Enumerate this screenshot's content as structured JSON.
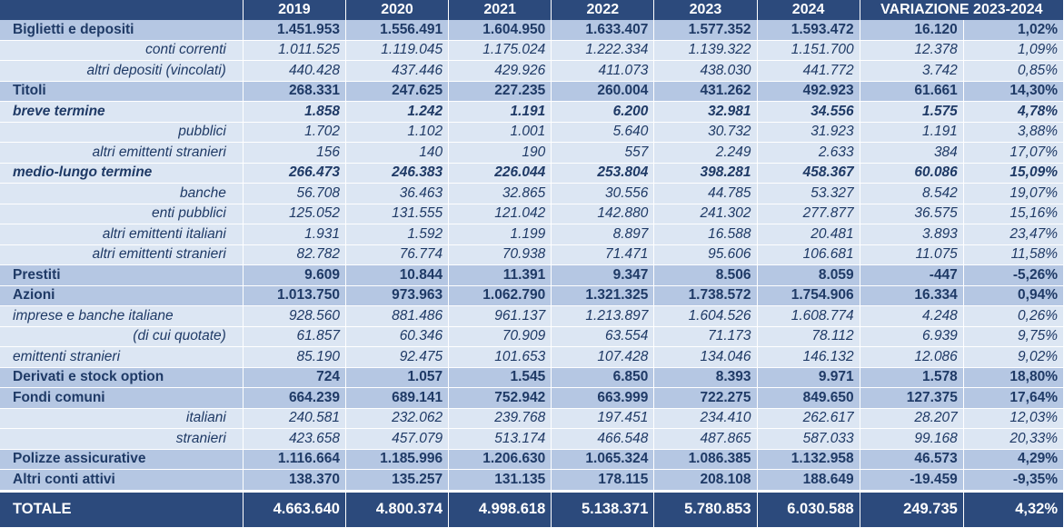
{
  "header": {
    "label": "",
    "years": [
      "2019",
      "2020",
      "2021",
      "2022",
      "2023",
      "2024"
    ],
    "variation": "VARIAZIONE 2023-2024"
  },
  "rows": [
    {
      "label": "Biglietti e depositi",
      "style": "lvl0",
      "align": "lbl-0",
      "values": [
        "1.451.953",
        "1.556.491",
        "1.604.950",
        "1.633.407",
        "1.577.352",
        "1.593.472",
        "16.120",
        "1,02%"
      ]
    },
    {
      "label": "conti correnti",
      "style": "sub",
      "align": "lbl-r",
      "values": [
        "1.011.525",
        "1.119.045",
        "1.175.024",
        "1.222.334",
        "1.139.322",
        "1.151.700",
        "12.378",
        "1,09%"
      ]
    },
    {
      "label": "altri depositi (vincolati)",
      "style": "sub",
      "align": "lbl-r",
      "values": [
        "440.428",
        "437.446",
        "429.926",
        "411.073",
        "438.030",
        "441.772",
        "3.742",
        "0,85%"
      ]
    },
    {
      "label": "Titoli",
      "style": "lvl0",
      "align": "lbl-0",
      "values": [
        "268.331",
        "247.625",
        "227.235",
        "260.004",
        "431.262",
        "492.923",
        "61.661",
        "14,30%"
      ]
    },
    {
      "label": "breve termine",
      "style": "sub-bold",
      "align": "lbl-1",
      "values": [
        "1.858",
        "1.242",
        "1.191",
        "6.200",
        "32.981",
        "34.556",
        "1.575",
        "4,78%"
      ]
    },
    {
      "label": "pubblici",
      "style": "sub",
      "align": "lbl-r",
      "values": [
        "1.702",
        "1.102",
        "1.001",
        "5.640",
        "30.732",
        "31.923",
        "1.191",
        "3,88%"
      ]
    },
    {
      "label": "altri emittenti stranieri",
      "style": "sub",
      "align": "lbl-r",
      "values": [
        "156",
        "140",
        "190",
        "557",
        "2.249",
        "2.633",
        "384",
        "17,07%"
      ]
    },
    {
      "label": "medio-lungo termine",
      "style": "sub-bold",
      "align": "lbl-1",
      "values": [
        "266.473",
        "246.383",
        "226.044",
        "253.804",
        "398.281",
        "458.367",
        "60.086",
        "15,09%"
      ]
    },
    {
      "label": "banche",
      "style": "sub",
      "align": "lbl-r",
      "values": [
        "56.708",
        "36.463",
        "32.865",
        "30.556",
        "44.785",
        "53.327",
        "8.542",
        "19,07%"
      ]
    },
    {
      "label": "enti pubblici",
      "style": "sub",
      "align": "lbl-r",
      "values": [
        "125.052",
        "131.555",
        "121.042",
        "142.880",
        "241.302",
        "277.877",
        "36.575",
        "15,16%"
      ]
    },
    {
      "label": "altri emittenti italiani",
      "style": "sub",
      "align": "lbl-r",
      "values": [
        "1.931",
        "1.592",
        "1.199",
        "8.897",
        "16.588",
        "20.481",
        "3.893",
        "23,47%"
      ]
    },
    {
      "label": "altri emittenti stranieri",
      "style": "sub",
      "align": "lbl-r",
      "values": [
        "82.782",
        "76.774",
        "70.938",
        "71.471",
        "95.606",
        "106.681",
        "11.075",
        "11,58%"
      ]
    },
    {
      "label": "Prestiti",
      "style": "lvl0",
      "align": "lbl-0",
      "values": [
        "9.609",
        "10.844",
        "11.391",
        "9.347",
        "8.506",
        "8.059",
        "-447",
        "-5,26%"
      ]
    },
    {
      "label": "Azioni",
      "style": "lvl0",
      "align": "lbl-0",
      "values": [
        "1.013.750",
        "973.963",
        "1.062.790",
        "1.321.325",
        "1.738.572",
        "1.754.906",
        "16.334",
        "0,94%"
      ]
    },
    {
      "label": "imprese e banche italiane",
      "style": "sub",
      "align": "lbl-1",
      "values": [
        "928.560",
        "881.486",
        "961.137",
        "1.213.897",
        "1.604.526",
        "1.608.774",
        "4.248",
        "0,26%"
      ]
    },
    {
      "label": "(di cui quotate)",
      "style": "sub",
      "align": "lbl-r",
      "values": [
        "61.857",
        "60.346",
        "70.909",
        "63.554",
        "71.173",
        "78.112",
        "6.939",
        "9,75%"
      ]
    },
    {
      "label": "emittenti stranieri",
      "style": "sub",
      "align": "lbl-1",
      "values": [
        "85.190",
        "92.475",
        "101.653",
        "107.428",
        "134.046",
        "146.132",
        "12.086",
        "9,02%"
      ]
    },
    {
      "label": "Derivati e stock option",
      "style": "lvl0",
      "align": "lbl-0",
      "values": [
        "724",
        "1.057",
        "1.545",
        "6.850",
        "8.393",
        "9.971",
        "1.578",
        "18,80%"
      ]
    },
    {
      "label": "Fondi comuni",
      "style": "lvl0",
      "align": "lbl-0",
      "values": [
        "664.239",
        "689.141",
        "752.942",
        "663.999",
        "722.275",
        "849.650",
        "127.375",
        "17,64%"
      ]
    },
    {
      "label": "italiani",
      "style": "sub",
      "align": "lbl-r",
      "values": [
        "240.581",
        "232.062",
        "239.768",
        "197.451",
        "234.410",
        "262.617",
        "28.207",
        "12,03%"
      ]
    },
    {
      "label": "stranieri",
      "style": "sub",
      "align": "lbl-r",
      "values": [
        "423.658",
        "457.079",
        "513.174",
        "466.548",
        "487.865",
        "587.033",
        "99.168",
        "20,33%"
      ]
    },
    {
      "label": "Polizze assicurative",
      "style": "lvl0",
      "align": "lbl-0",
      "values": [
        "1.116.664",
        "1.185.996",
        "1.206.630",
        "1.065.324",
        "1.086.385",
        "1.132.958",
        "46.573",
        "4,29%"
      ]
    },
    {
      "label": "Altri conti attivi",
      "style": "lvl0",
      "align": "lbl-0",
      "values": [
        "138.370",
        "135.257",
        "131.135",
        "178.115",
        "208.108",
        "188.649",
        "-19.459",
        "-9,35%"
      ]
    }
  ],
  "total": {
    "label": "TOTALE",
    "values": [
      "4.663.640",
      "4.800.374",
      "4.998.618",
      "5.138.371",
      "5.780.853",
      "6.030.588",
      "249.735",
      "4,32%"
    ]
  }
}
